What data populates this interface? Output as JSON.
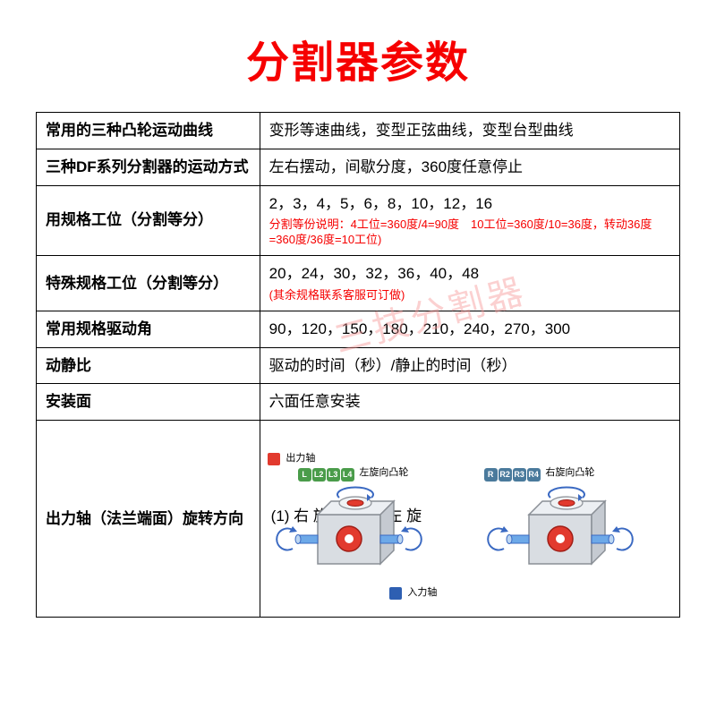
{
  "title": "分割器参数",
  "rows": [
    {
      "label": "常用的三种凸轮运动曲线",
      "value": "变形等速曲线，变型正弦曲线，变型台型曲线"
    },
    {
      "label": "三种DF系列分割器的运动方式",
      "value": "左右摆动，间歇分度，360度任意停止"
    },
    {
      "label": "用规格工位（分割等分）",
      "value": "2，3，4，5，6，8，10，12，16",
      "note": "分割等份说明：4工位=360度/4=90度　10工位=360度/10=36度，转动36度=360度/36度=10工位)"
    },
    {
      "label": "特殊规格工位（分割等分）",
      "value": "20，24，30，32，36，40，48",
      "note": "(其余规格联系客服可订做)"
    },
    {
      "label": "常用规格驱动角",
      "value": "90，120，150，180，210，240，270，300"
    },
    {
      "label": "动静比",
      "value": "驱动的时间（秒）/静止的时间（秒）"
    },
    {
      "label": "安装面",
      "value": "六面任意安装"
    }
  ],
  "rotation_row": {
    "label": "出力轴（法兰端面）旋转方向",
    "opt1": "(1) 右 旋",
    "opt2": "(2) 左 旋",
    "out_legend": "出力轴",
    "in_legend": "入力轴",
    "left_cam": "左旋向凸轮",
    "right_cam": "右旋向凸轮",
    "L_tags": [
      "L",
      "L2",
      "L3",
      "L4"
    ],
    "R_tags": [
      "R",
      "R2",
      "R3",
      "R4"
    ]
  },
  "colors": {
    "out_box": "#e23a2e",
    "in_box": "#2e5fb2",
    "body": "#d9dde2",
    "edge": "#8a8f96",
    "shaft_blue": "#6da9e8",
    "arrow": "#3a69c2",
    "red_disc": "#e23a2e"
  },
  "watermark": "三技分割器"
}
